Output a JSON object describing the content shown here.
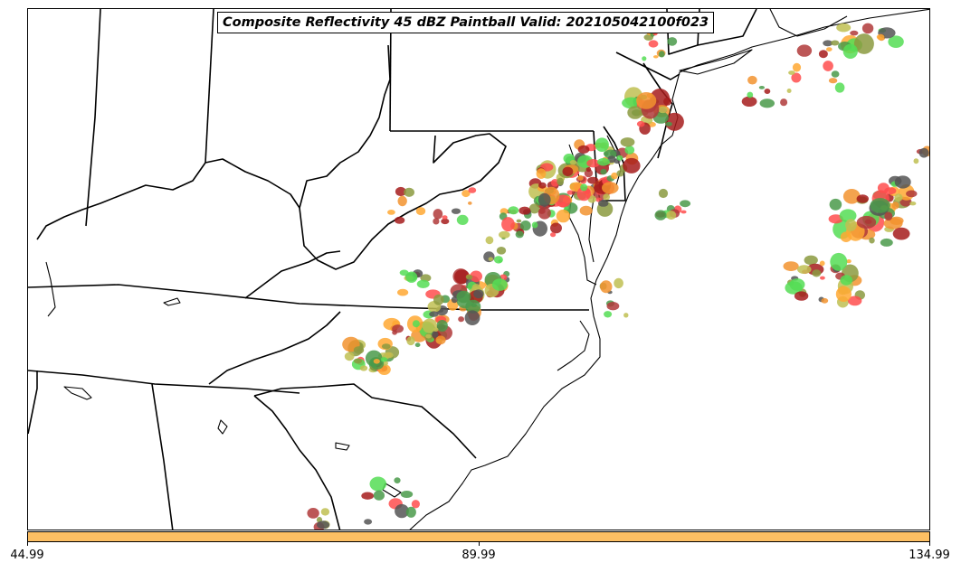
{
  "title": "Composite Reflectivity 45 dBZ Paintball Valid: 202105042100f023",
  "colorbar": {
    "color": "#fdbf63",
    "ticks": [
      "44.99",
      "89.99",
      "134.99"
    ],
    "tick_values": [
      44.99,
      89.99,
      134.99
    ],
    "range": [
      44.99,
      134.99
    ]
  },
  "map": {
    "projection": "lambert-conformal",
    "features": [
      "state-borders",
      "coastlines",
      "great-lakes-shoreline"
    ],
    "member_colors": [
      "#a61c1c",
      "#c0c052",
      "#555555",
      "#f2932f",
      "#ff4d4d",
      "#55dd55",
      "#8b9a3f",
      "#ffa833",
      "#b03a3a",
      "#4a9a4a"
    ]
  }
}
